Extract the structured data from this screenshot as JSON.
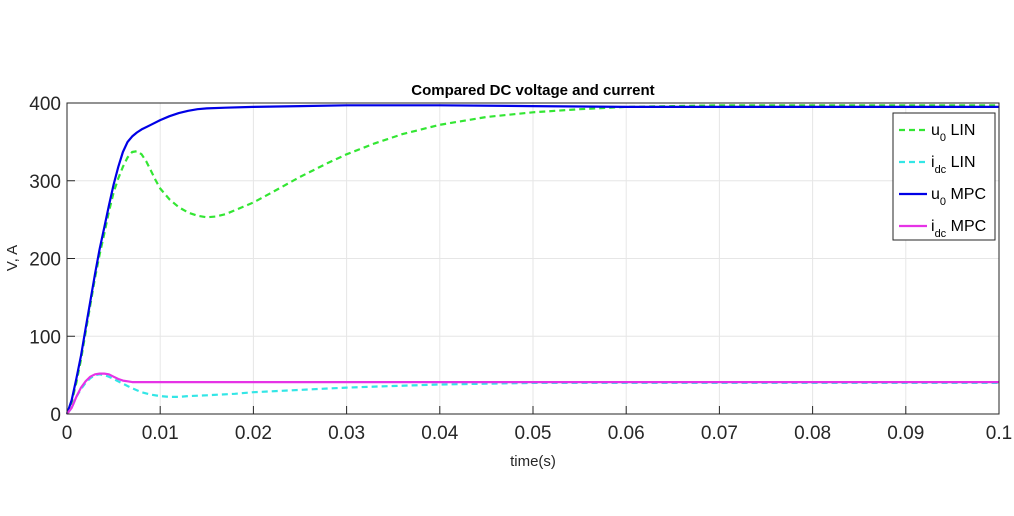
{
  "chart_data": {
    "type": "line",
    "title": "Compared DC voltage and current",
    "xlabel": "time(s)",
    "ylabel": "V, A",
    "xlim": [
      0,
      0.1
    ],
    "ylim": [
      0,
      400
    ],
    "xticks": [
      "0",
      "0.01",
      "0.02",
      "0.03",
      "0.04",
      "0.05",
      "0.06",
      "0.07",
      "0.08",
      "0.09",
      "0.1"
    ],
    "yticks": [
      "0",
      "100",
      "200",
      "300",
      "400"
    ],
    "grid": true,
    "legend_position": "top-right",
    "series": [
      {
        "name": "u0 LIN",
        "label_main": "u",
        "label_sub": "0",
        "label_rest": " LIN",
        "color": "#33e633",
        "style": "dashed",
        "x": [
          0,
          0.0005,
          0.001,
          0.0015,
          0.002,
          0.0025,
          0.003,
          0.0035,
          0.004,
          0.0045,
          0.005,
          0.0055,
          0.006,
          0.0065,
          0.007,
          0.0075,
          0.008,
          0.0085,
          0.009,
          0.0095,
          0.01,
          0.011,
          0.012,
          0.013,
          0.014,
          0.015,
          0.016,
          0.017,
          0.018,
          0.02,
          0.022,
          0.025,
          0.028,
          0.03,
          0.033,
          0.036,
          0.04,
          0.045,
          0.05,
          0.055,
          0.06,
          0.065,
          0.07,
          0.08,
          0.09,
          0.1
        ],
        "y": [
          0,
          15,
          40,
          70,
          105,
          140,
          175,
          205,
          232,
          260,
          285,
          303,
          318,
          330,
          337,
          338,
          334,
          325,
          313,
          301,
          290,
          276,
          266,
          259,
          255,
          253,
          254,
          257,
          262,
          272,
          285,
          305,
          323,
          334,
          348,
          360,
          372,
          382,
          388,
          392,
          395,
          396,
          397,
          397,
          397,
          397
        ]
      },
      {
        "name": "idc LIN",
        "label_main": "i",
        "label_sub": "dc",
        "label_rest": " LIN",
        "color": "#33e6e6",
        "style": "dashed",
        "x": [
          0,
          0.0005,
          0.001,
          0.0015,
          0.002,
          0.0025,
          0.003,
          0.0035,
          0.004,
          0.0045,
          0.005,
          0.006,
          0.007,
          0.008,
          0.009,
          0.01,
          0.011,
          0.012,
          0.013,
          0.015,
          0.018,
          0.02,
          0.025,
          0.03,
          0.035,
          0.04,
          0.045,
          0.05,
          0.06,
          0.07,
          0.08,
          0.09,
          0.1
        ],
        "y": [
          0,
          8,
          22,
          32,
          40,
          46,
          50,
          51,
          50,
          48,
          45,
          39,
          33,
          28,
          25,
          23,
          22,
          22,
          23,
          24,
          26,
          28,
          31,
          34,
          36,
          38,
          39,
          40,
          40,
          40,
          40,
          40,
          40
        ]
      },
      {
        "name": "u0 MPC",
        "label_main": "u",
        "label_sub": "0",
        "label_rest": " MPC",
        "color": "#0000e6",
        "style": "solid",
        "x": [
          0,
          0.0005,
          0.001,
          0.0015,
          0.002,
          0.0025,
          0.003,
          0.0035,
          0.004,
          0.0045,
          0.005,
          0.0055,
          0.006,
          0.0065,
          0.007,
          0.0075,
          0.008,
          0.009,
          0.01,
          0.011,
          0.012,
          0.013,
          0.014,
          0.015,
          0.017,
          0.02,
          0.025,
          0.03,
          0.035,
          0.04,
          0.05,
          0.06,
          0.07,
          0.08,
          0.09,
          0.1
        ],
        "y": [
          0,
          18,
          45,
          75,
          110,
          145,
          180,
          212,
          240,
          268,
          295,
          318,
          337,
          350,
          357,
          362,
          366,
          372,
          378,
          383,
          387,
          390,
          392,
          393,
          394,
          395,
          396,
          397,
          397,
          397,
          396,
          395,
          395,
          395,
          395,
          395
        ]
      },
      {
        "name": "idc MPC",
        "label_main": "i",
        "label_sub": "dc",
        "label_rest": " MPC",
        "color": "#e633e6",
        "style": "solid",
        "x": [
          0,
          0.0005,
          0.001,
          0.0015,
          0.002,
          0.0025,
          0.003,
          0.0035,
          0.004,
          0.0045,
          0.005,
          0.0055,
          0.006,
          0.0065,
          0.007,
          0.008,
          0.009,
          0.01,
          0.012,
          0.015,
          0.02,
          0.03,
          0.04,
          0.05,
          0.06,
          0.07,
          0.08,
          0.09,
          0.1
        ],
        "y": [
          0,
          8,
          22,
          34,
          42,
          48,
          51,
          52,
          52,
          51,
          48,
          45,
          43,
          42,
          41,
          41,
          41,
          41,
          41,
          41,
          41,
          41,
          41,
          41,
          41,
          41,
          41,
          41,
          41
        ]
      }
    ]
  }
}
